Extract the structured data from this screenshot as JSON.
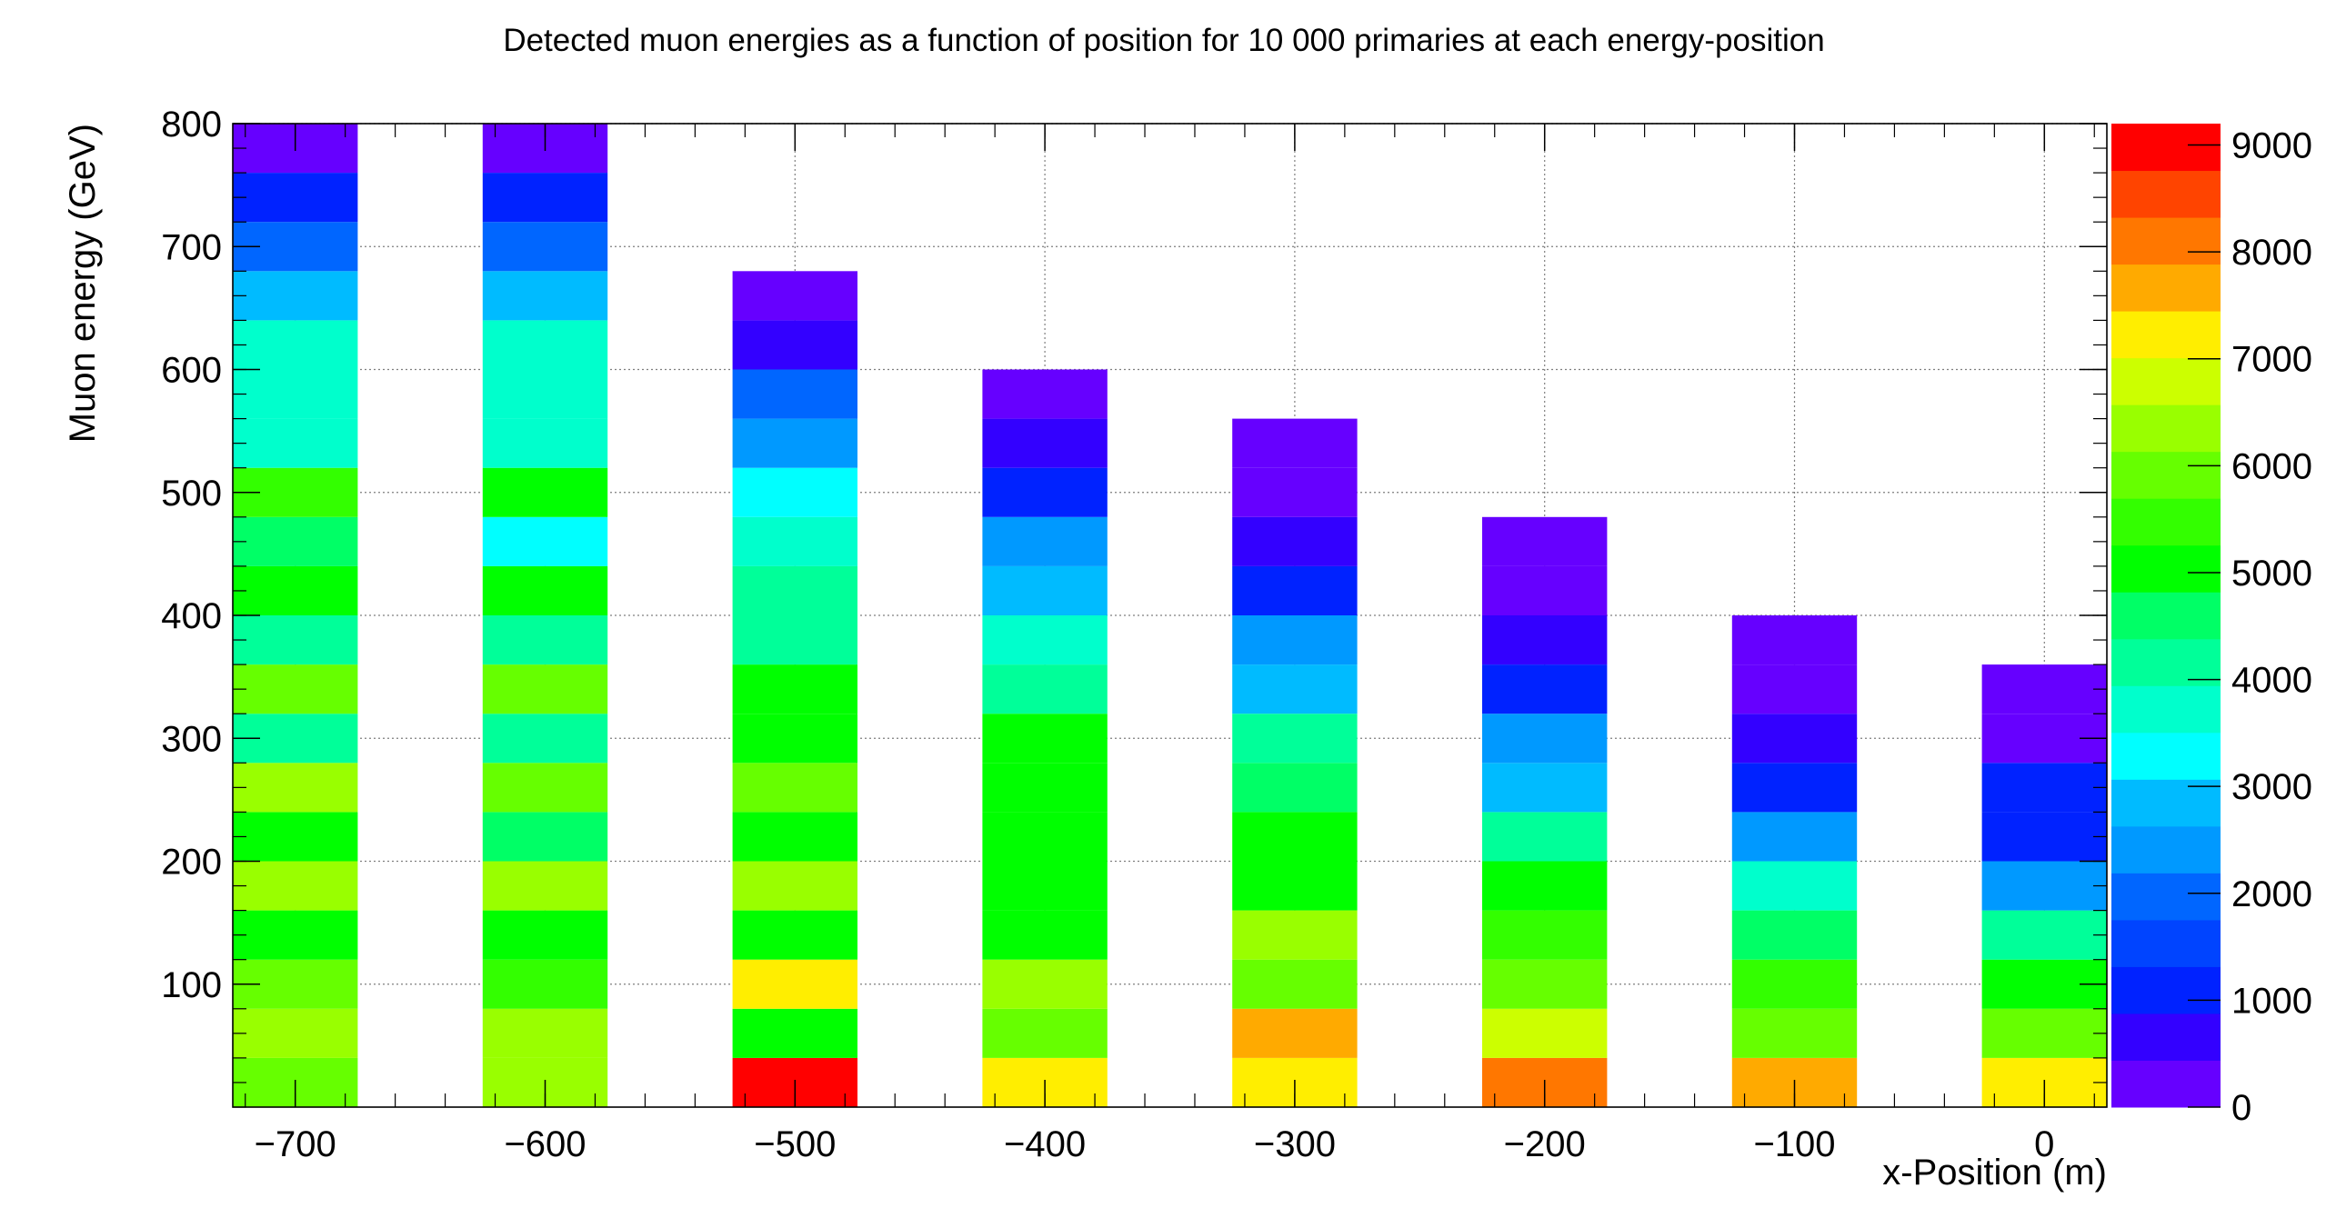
{
  "chart_data": {
    "type": "heatmap",
    "title": "Detected muon energies as a function of position for 10 000 primaries at each energy-position",
    "xlabel": "x-Position (m)",
    "ylabel": "Muon energy (GeV)",
    "xlim": [
      -725,
      25
    ],
    "ylim": [
      0,
      800
    ],
    "bin_width_x": 50,
    "bin_height_y": 40,
    "x_ticks": [
      -700,
      -600,
      -500,
      -400,
      -300,
      -200,
      -100,
      0
    ],
    "x_tick_labels": [
      "−700",
      "−600",
      "−500",
      "−400",
      "−300",
      "−200",
      "−100",
      "0"
    ],
    "y_ticks": [
      100,
      200,
      300,
      400,
      500,
      600,
      700,
      800
    ],
    "y_tick_labels": [
      "100",
      "200",
      "300",
      "400",
      "500",
      "600",
      "700",
      "800"
    ],
    "grid": true,
    "colorbar": {
      "min": 0,
      "max": 9200,
      "ticks": [
        0,
        1000,
        2000,
        3000,
        4000,
        5000,
        6000,
        7000,
        8000,
        9000
      ],
      "tick_labels": [
        "0",
        "1000",
        "2000",
        "3000",
        "4000",
        "5000",
        "6000",
        "7000",
        "8000",
        "9000"
      ],
      "colors": [
        "#6600ff",
        "#3300ff",
        "#0022ff",
        "#0044ff",
        "#0066ff",
        "#0099ff",
        "#00bbff",
        "#00ffff",
        "#00ffcc",
        "#00ff99",
        "#00ff66",
        "#00ff00",
        "#33ff00",
        "#66ff00",
        "#99ff00",
        "#ccff00",
        "#ffee00",
        "#ffaa00",
        "#ff7700",
        "#ff4400",
        "#ff0000"
      ]
    },
    "columns": [
      {
        "x": -700,
        "values": [
          5900,
          6300,
          5900,
          5200,
          6300,
          5000,
          6300,
          4200,
          5800,
          4200,
          5100,
          4500,
          5400,
          3800,
          3800,
          3800,
          3000,
          2000,
          1000,
          400
        ]
      },
      {
        "x": -600,
        "values": [
          6300,
          6300,
          5600,
          5200,
          6300,
          4400,
          5800,
          4200,
          5800,
          4200,
          5100,
          3500,
          5200,
          3800,
          3800,
          3800,
          3000,
          2000,
          1000,
          400
        ]
      },
      {
        "x": -500,
        "values": [
          9100,
          5200,
          7200,
          5200,
          6300,
          5200,
          5800,
          5000,
          5000,
          4200,
          4200,
          3800,
          3200,
          2500,
          2000,
          800,
          400
        ]
      },
      {
        "x": -400,
        "values": [
          7200,
          6000,
          6300,
          5200,
          5200,
          5000,
          5000,
          5000,
          4200,
          3800,
          3000,
          2500,
          1000,
          600,
          400
        ]
      },
      {
        "x": -300,
        "values": [
          7200,
          7800,
          6000,
          6300,
          5200,
          5200,
          4800,
          4300,
          3000,
          2400,
          1000,
          600,
          400,
          400
        ]
      },
      {
        "x": -200,
        "values": [
          8000,
          6800,
          5800,
          5400,
          5200,
          4200,
          3000,
          2400,
          1000,
          600,
          400,
          400
        ]
      },
      {
        "x": -100,
        "values": [
          7800,
          5900,
          5400,
          4400,
          3800,
          2400,
          1000,
          600,
          400,
          400
        ]
      },
      {
        "x": 0,
        "values": [
          7200,
          5800,
          5200,
          4300,
          2200,
          1100,
          900,
          400,
          400
        ]
      }
    ]
  }
}
